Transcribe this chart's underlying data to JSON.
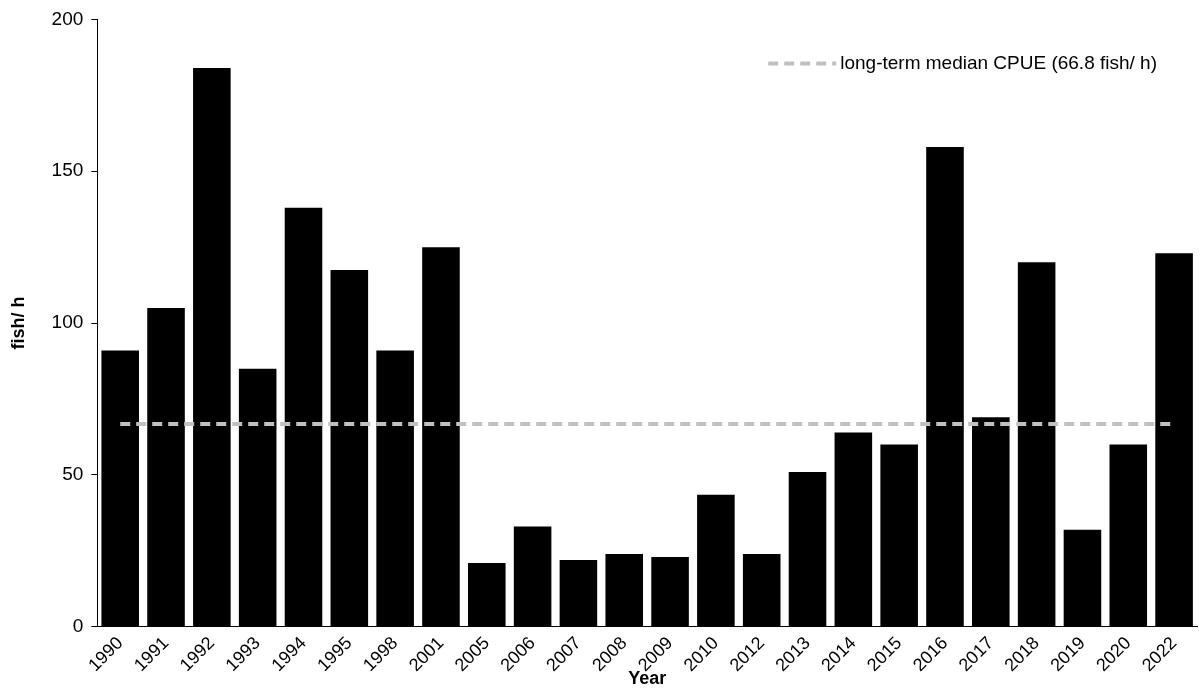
{
  "chart_data": {
    "type": "bar",
    "xlabel": "Year",
    "ylabel": "fish/ h",
    "categories": [
      "1990",
      "1991",
      "1992",
      "1993",
      "1994",
      "1995",
      "1998",
      "2001",
      "2005",
      "2006",
      "2007",
      "2008",
      "2009",
      "2010",
      "2012",
      "2013",
      "2014",
      "2015",
      "2016",
      "2017",
      "2018",
      "2019",
      "2020",
      "2022"
    ],
    "series": [
      {
        "color": "#000000",
        "values": [
          91,
          105,
          184,
          85,
          138,
          117.5,
          91,
          125,
          21,
          33,
          22,
          24,
          23,
          43.5,
          24,
          51,
          64,
          60,
          158,
          69,
          120,
          32,
          60,
          123
        ]
      }
    ],
    "ylim": [
      0,
      200
    ],
    "yticks": [
      0,
      50,
      100,
      150,
      200
    ],
    "grid": false,
    "legend": "top right",
    "ref_lines": [
      {
        "axis": "y",
        "value": 66.8,
        "label": "long-term median CPUE (66.8 fish/ h)",
        "color": "#c0c0c0",
        "line_style": "dashed"
      }
    ]
  }
}
